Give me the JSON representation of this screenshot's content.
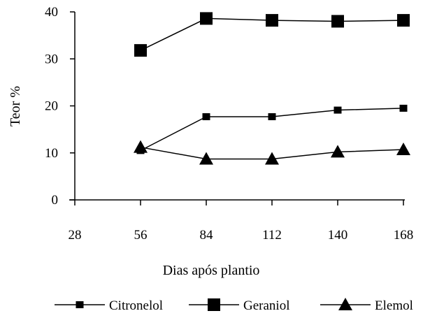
{
  "chart_data": {
    "type": "line",
    "xlabel": "Dias após plantio",
    "ylabel": "Teor %",
    "x_ticks": [
      28,
      56,
      84,
      112,
      140,
      168
    ],
    "y_ticks": [
      0,
      10,
      20,
      30,
      40
    ],
    "xlim": [
      28,
      168
    ],
    "ylim": [
      0,
      40
    ],
    "grid": false,
    "legend_position": "bottom",
    "series": [
      {
        "name": "Citronelol",
        "marker": "small-square",
        "color": "#000000",
        "x": [
          56,
          84,
          112,
          140,
          168
        ],
        "y": [
          10.5,
          17.7,
          17.7,
          19.1,
          19.5
        ]
      },
      {
        "name": "Geraniol",
        "marker": "large-square",
        "color": "#000000",
        "x": [
          56,
          84,
          112,
          140,
          168
        ],
        "y": [
          31.8,
          38.6,
          38.2,
          38.0,
          38.2
        ]
      },
      {
        "name": "Elemol",
        "marker": "triangle",
        "color": "#000000",
        "x": [
          56,
          84,
          112,
          140,
          168
        ],
        "y": [
          11.2,
          8.7,
          8.7,
          10.2,
          10.7
        ]
      }
    ]
  }
}
